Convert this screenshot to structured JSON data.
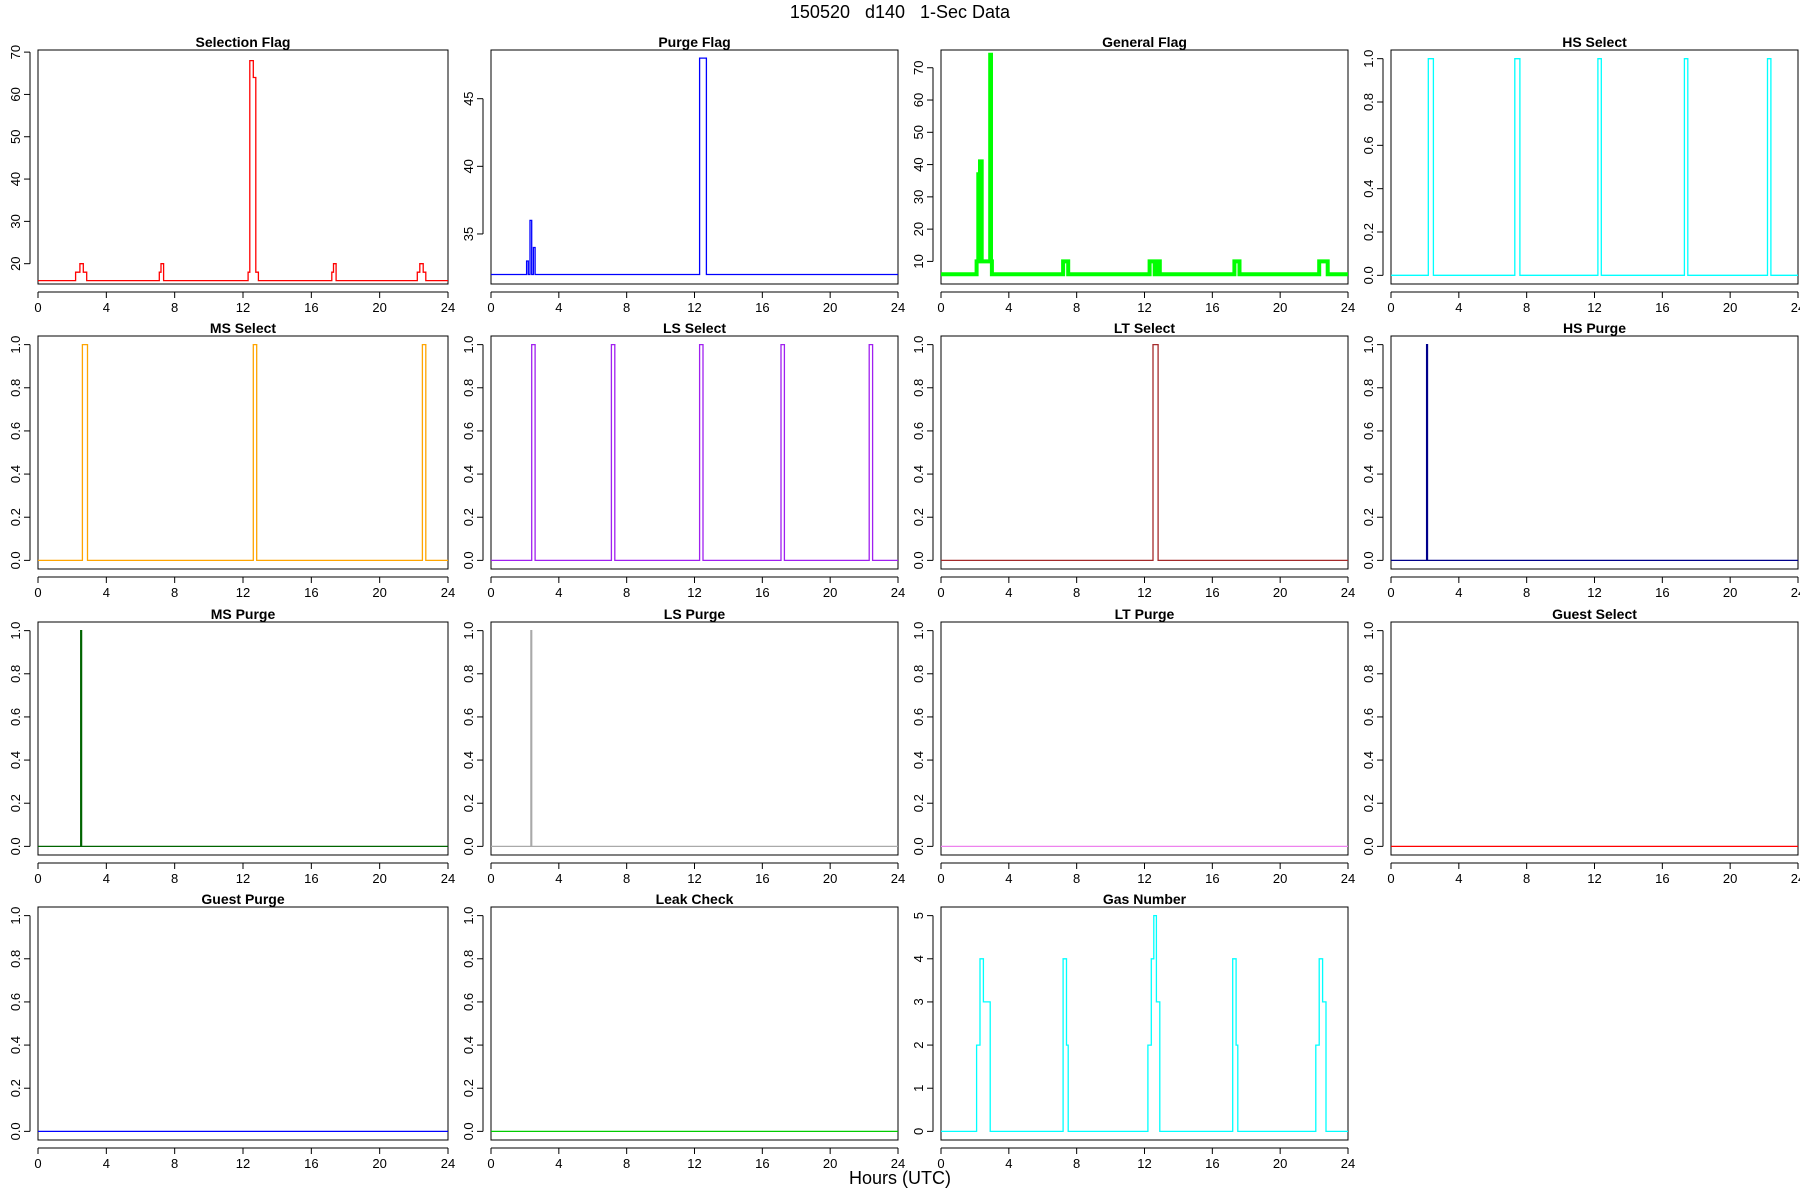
{
  "page": {
    "title": "150520   d140   1-Sec Data",
    "x_axis_label": "Hours (UTC)"
  },
  "chart_data": [
    {
      "type": "line",
      "title": "Selection Flag",
      "color": "#ff0000",
      "xlim": [
        0,
        24
      ],
      "ylim": [
        15.2,
        70.5
      ],
      "xticks": [
        0,
        4,
        8,
        12,
        16,
        20,
        24
      ],
      "yticks": [
        20,
        30,
        40,
        50,
        60,
        70
      ],
      "ytick_labels": [
        "20",
        "30",
        "40",
        "50",
        "60",
        "70"
      ],
      "x": [
        0,
        2.2,
        2.2,
        2.45,
        2.45,
        2.65,
        2.65,
        2.85,
        2.85,
        7.1,
        7.1,
        7.2,
        7.2,
        7.35,
        7.35,
        12.3,
        12.3,
        12.4,
        12.4,
        12.6,
        12.6,
        12.75,
        12.75,
        12.9,
        12.9,
        17.2,
        17.2,
        17.3,
        17.3,
        17.45,
        17.45,
        22.2,
        22.2,
        22.35,
        22.35,
        22.55,
        22.55,
        22.7,
        22.7,
        24
      ],
      "y": [
        16,
        16,
        18,
        18,
        20,
        20,
        18,
        18,
        16,
        16,
        18,
        18,
        20,
        20,
        16,
        16,
        18,
        18,
        68,
        68,
        64,
        64,
        18,
        18,
        16,
        16,
        18,
        18,
        20,
        20,
        16,
        16,
        18,
        18,
        20,
        20,
        18,
        18,
        16,
        16
      ]
    },
    {
      "type": "line",
      "title": "Purge Flag",
      "color": "#0000ff",
      "xlim": [
        0,
        24
      ],
      "ylim": [
        31.3,
        48.6
      ],
      "xticks": [
        0,
        4,
        8,
        12,
        16,
        20,
        24
      ],
      "yticks": [
        35,
        40,
        45
      ],
      "ytick_labels": [
        "35",
        "40",
        "45"
      ],
      "x": [
        0,
        2.1,
        2.1,
        2.2,
        2.2,
        2.3,
        2.3,
        2.4,
        2.4,
        2.5,
        2.5,
        2.6,
        2.6,
        2.7,
        2.7,
        12.3,
        12.3,
        12.7,
        12.7,
        24
      ],
      "y": [
        32,
        32,
        33,
        33,
        32,
        32,
        36,
        36,
        32,
        32,
        34,
        34,
        32,
        32,
        32,
        32,
        48,
        48,
        32,
        32
      ]
    },
    {
      "type": "line",
      "title": "General Flag",
      "color": "#00ff00",
      "xlim": [
        0,
        24
      ],
      "ylim": [
        3.0,
        75.5
      ],
      "xticks": [
        0,
        4,
        8,
        12,
        16,
        20,
        24
      ],
      "yticks": [
        10,
        20,
        30,
        40,
        50,
        60,
        70
      ],
      "ytick_labels": [
        "10",
        "20",
        "30",
        "40",
        "50",
        "60",
        "70"
      ],
      "x": [
        0,
        2.1,
        2.1,
        2.2,
        2.2,
        2.3,
        2.3,
        2.4,
        2.4,
        2.5,
        2.5,
        2.9,
        2.9,
        2.95,
        2.95,
        3.0,
        3.0,
        7.2,
        7.2,
        7.5,
        7.5,
        12.3,
        12.3,
        12.6,
        12.6,
        12.8,
        12.8,
        12.9,
        12.9,
        17.3,
        17.3,
        17.6,
        17.6,
        22.3,
        22.3,
        22.8,
        22.8,
        24
      ],
      "y": [
        6,
        6,
        10,
        10,
        37,
        37,
        41,
        41,
        10,
        10,
        10,
        10,
        74,
        74,
        10,
        10,
        6,
        6,
        10,
        10,
        6,
        6,
        10,
        10,
        6,
        6,
        10,
        10,
        6,
        6,
        10,
        10,
        6,
        6,
        10,
        10,
        6,
        6
      ],
      "stroke_width": 4
    },
    {
      "type": "line",
      "title": "HS Select",
      "color": "#00ffff",
      "xlim": [
        0,
        24
      ],
      "ylim": [
        -0.04,
        1.04
      ],
      "xticks": [
        0,
        4,
        8,
        12,
        16,
        20,
        24
      ],
      "yticks": [
        0,
        0.2,
        0.4,
        0.6,
        0.8,
        1.0
      ],
      "ytick_labels": [
        "0.0",
        "0.2",
        "0.4",
        "0.6",
        "0.8",
        "1.0"
      ],
      "x": [
        0,
        2.2,
        2.2,
        2.5,
        2.5,
        7.3,
        7.3,
        7.6,
        7.6,
        12.2,
        12.2,
        12.4,
        12.4,
        17.3,
        17.3,
        17.5,
        17.5,
        22.2,
        22.2,
        22.4,
        22.4,
        24
      ],
      "y": [
        0,
        0,
        1,
        1,
        0,
        0,
        1,
        1,
        0,
        0,
        1,
        1,
        0,
        0,
        1,
        1,
        0,
        0,
        1,
        1,
        0,
        0
      ]
    },
    {
      "type": "line",
      "title": "MS Select",
      "color": "#ffa500",
      "xlim": [
        0,
        24
      ],
      "ylim": [
        -0.04,
        1.04
      ],
      "xticks": [
        0,
        4,
        8,
        12,
        16,
        20,
        24
      ],
      "yticks": [
        0,
        0.2,
        0.4,
        0.6,
        0.8,
        1.0
      ],
      "ytick_labels": [
        "0.0",
        "0.2",
        "0.4",
        "0.6",
        "0.8",
        "1.0"
      ],
      "x": [
        0,
        2.6,
        2.6,
        2.9,
        2.9,
        12.6,
        12.6,
        12.8,
        12.8,
        22.5,
        22.5,
        22.7,
        22.7,
        24
      ],
      "y": [
        0,
        0,
        1,
        1,
        0,
        0,
        1,
        1,
        0,
        0,
        1,
        1,
        0,
        0
      ]
    },
    {
      "type": "line",
      "title": "LS Select",
      "color": "#a020f0",
      "xlim": [
        0,
        24
      ],
      "ylim": [
        -0.04,
        1.04
      ],
      "xticks": [
        0,
        4,
        8,
        12,
        16,
        20,
        24
      ],
      "yticks": [
        0,
        0.2,
        0.4,
        0.6,
        0.8,
        1.0
      ],
      "ytick_labels": [
        "0.0",
        "0.2",
        "0.4",
        "0.6",
        "0.8",
        "1.0"
      ],
      "x": [
        0,
        2.4,
        2.4,
        2.6,
        2.6,
        7.1,
        7.1,
        7.3,
        7.3,
        12.3,
        12.3,
        12.5,
        12.5,
        17.1,
        17.1,
        17.3,
        17.3,
        22.3,
        22.3,
        22.5,
        22.5,
        24
      ],
      "y": [
        0,
        0,
        1,
        1,
        0,
        0,
        1,
        1,
        0,
        0,
        1,
        1,
        0,
        0,
        1,
        1,
        0,
        0,
        1,
        1,
        0,
        0
      ]
    },
    {
      "type": "line",
      "title": "LT Select",
      "color": "#a52a2a",
      "xlim": [
        0,
        24
      ],
      "ylim": [
        -0.04,
        1.04
      ],
      "xticks": [
        0,
        4,
        8,
        12,
        16,
        20,
        24
      ],
      "yticks": [
        0,
        0.2,
        0.4,
        0.6,
        0.8,
        1.0
      ],
      "ytick_labels": [
        "0.0",
        "0.2",
        "0.4",
        "0.6",
        "0.8",
        "1.0"
      ],
      "x": [
        0,
        12.5,
        12.5,
        12.8,
        12.8,
        24
      ],
      "y": [
        0,
        0,
        1,
        1,
        0,
        0
      ]
    },
    {
      "type": "line",
      "title": "HS Purge",
      "color": "#00008b",
      "xlim": [
        0,
        24
      ],
      "ylim": [
        -0.04,
        1.04
      ],
      "xticks": [
        0,
        4,
        8,
        12,
        16,
        20,
        24
      ],
      "yticks": [
        0,
        0.2,
        0.4,
        0.6,
        0.8,
        1.0
      ],
      "ytick_labels": [
        "0.0",
        "0.2",
        "0.4",
        "0.6",
        "0.8",
        "1.0"
      ],
      "x": [
        0,
        2.1,
        2.1,
        2.15,
        2.15,
        24
      ],
      "y": [
        0,
        0,
        1,
        1,
        0,
        0
      ]
    },
    {
      "type": "line",
      "title": "MS Purge",
      "color": "#006400",
      "xlim": [
        0,
        24
      ],
      "ylim": [
        -0.04,
        1.04
      ],
      "xticks": [
        0,
        4,
        8,
        12,
        16,
        20,
        24
      ],
      "yticks": [
        0,
        0.2,
        0.4,
        0.6,
        0.8,
        1.0
      ],
      "ytick_labels": [
        "0.0",
        "0.2",
        "0.4",
        "0.6",
        "0.8",
        "1.0"
      ],
      "x": [
        0,
        2.5,
        2.5,
        2.55,
        2.55,
        24
      ],
      "y": [
        0,
        0,
        1,
        1,
        0,
        0
      ]
    },
    {
      "type": "line",
      "title": "LS Purge",
      "color": "#a9a9a9",
      "xlim": [
        0,
        24
      ],
      "ylim": [
        -0.04,
        1.04
      ],
      "xticks": [
        0,
        4,
        8,
        12,
        16,
        20,
        24
      ],
      "yticks": [
        0,
        0.2,
        0.4,
        0.6,
        0.8,
        1.0
      ],
      "ytick_labels": [
        "0.0",
        "0.2",
        "0.4",
        "0.6",
        "0.8",
        "1.0"
      ],
      "x": [
        0,
        2.35,
        2.35,
        2.4,
        2.4,
        24
      ],
      "y": [
        0,
        0,
        1,
        1,
        0,
        0
      ]
    },
    {
      "type": "line",
      "title": "LT Purge",
      "color": "#ee82ee",
      "xlim": [
        0,
        24
      ],
      "ylim": [
        -0.04,
        1.04
      ],
      "xticks": [
        0,
        4,
        8,
        12,
        16,
        20,
        24
      ],
      "yticks": [
        0,
        0.2,
        0.4,
        0.6,
        0.8,
        1.0
      ],
      "ytick_labels": [
        "0.0",
        "0.2",
        "0.4",
        "0.6",
        "0.8",
        "1.0"
      ],
      "x": [
        0,
        24
      ],
      "y": [
        0,
        0
      ]
    },
    {
      "type": "line",
      "title": "Guest Select",
      "color": "#ff0000",
      "xlim": [
        0,
        24
      ],
      "ylim": [
        -0.04,
        1.04
      ],
      "xticks": [
        0,
        4,
        8,
        12,
        16,
        20,
        24
      ],
      "yticks": [
        0,
        0.2,
        0.4,
        0.6,
        0.8,
        1.0
      ],
      "ytick_labels": [
        "0.0",
        "0.2",
        "0.4",
        "0.6",
        "0.8",
        "1.0"
      ],
      "x": [
        0,
        24
      ],
      "y": [
        0,
        0
      ]
    },
    {
      "type": "line",
      "title": "Guest Purge",
      "color": "#0000ff",
      "xlim": [
        0,
        24
      ],
      "ylim": [
        -0.04,
        1.04
      ],
      "xticks": [
        0,
        4,
        8,
        12,
        16,
        20,
        24
      ],
      "yticks": [
        0,
        0.2,
        0.4,
        0.6,
        0.8,
        1.0
      ],
      "ytick_labels": [
        "0.0",
        "0.2",
        "0.4",
        "0.6",
        "0.8",
        "1.0"
      ],
      "x": [
        0,
        24
      ],
      "y": [
        0,
        0
      ]
    },
    {
      "type": "line",
      "title": "Leak Check",
      "color": "#00cc00",
      "xlim": [
        0,
        24
      ],
      "ylim": [
        -0.04,
        1.04
      ],
      "xticks": [
        0,
        4,
        8,
        12,
        16,
        20,
        24
      ],
      "yticks": [
        0,
        0.2,
        0.4,
        0.6,
        0.8,
        1.0
      ],
      "ytick_labels": [
        "0.0",
        "0.2",
        "0.4",
        "0.6",
        "0.8",
        "1.0"
      ],
      "x": [
        0,
        24
      ],
      "y": [
        0,
        0
      ]
    },
    {
      "type": "line",
      "title": "Gas Number",
      "color": "#00ffff",
      "xlim": [
        0,
        24
      ],
      "ylim": [
        -0.2,
        5.2
      ],
      "xticks": [
        0,
        4,
        8,
        12,
        16,
        20,
        24
      ],
      "yticks": [
        0,
        1,
        2,
        3,
        4,
        5
      ],
      "ytick_labels": [
        "0",
        "1",
        "2",
        "3",
        "4",
        "5"
      ],
      "x": [
        0,
        2.1,
        2.1,
        2.3,
        2.3,
        2.5,
        2.5,
        2.7,
        2.7,
        2.9,
        2.9,
        7.2,
        7.2,
        7.4,
        7.4,
        7.5,
        7.5,
        12.2,
        12.2,
        12.4,
        12.4,
        12.55,
        12.55,
        12.7,
        12.7,
        12.9,
        12.9,
        17.2,
        17.2,
        17.4,
        17.4,
        17.5,
        17.5,
        22.1,
        22.1,
        22.3,
        22.3,
        22.5,
        22.5,
        22.7,
        22.7,
        24
      ],
      "y": [
        0,
        0,
        2,
        2,
        4,
        4,
        3,
        3,
        3,
        3,
        0,
        0,
        4,
        4,
        2,
        2,
        0,
        0,
        2,
        2,
        4,
        4,
        5,
        5,
        3,
        3,
        0,
        0,
        4,
        4,
        2,
        2,
        0,
        0,
        2,
        2,
        4,
        4,
        3,
        3,
        0,
        0
      ]
    }
  ]
}
